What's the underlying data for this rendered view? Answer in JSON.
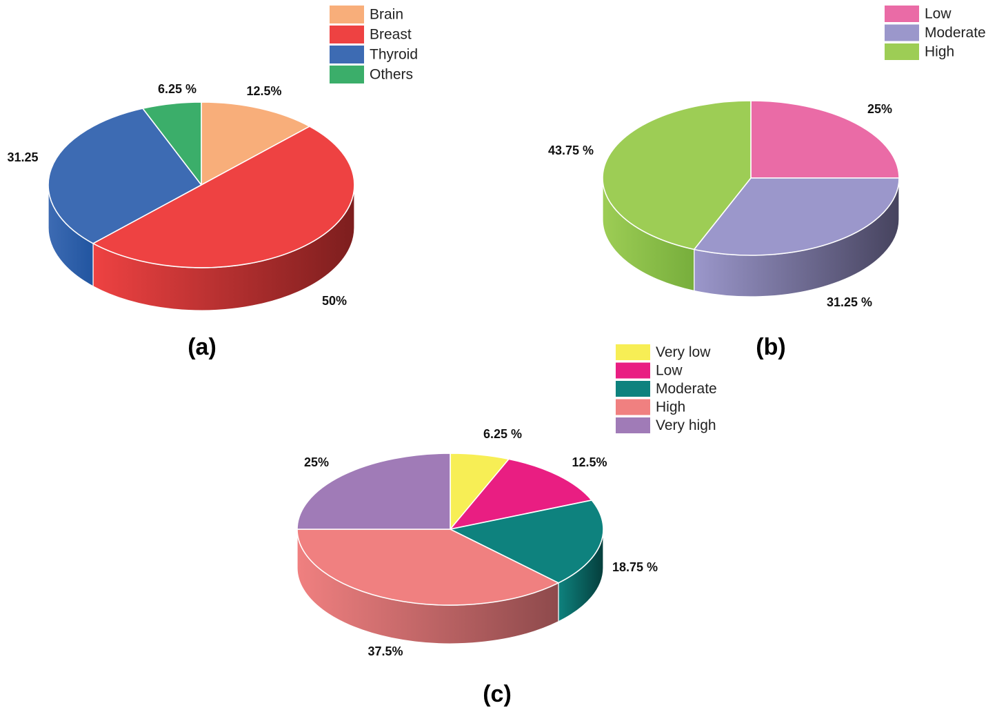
{
  "chart_data": [
    {
      "type": "pie",
      "panel_label": "(a)",
      "legend_position": "top-right",
      "categories": [
        "Brain",
        "Breast",
        "Thyroid",
        "Others"
      ],
      "values": [
        12.5,
        50,
        31.25,
        6.25
      ],
      "value_labels": [
        "12.5%",
        "50%",
        "31.25",
        "6.25 %"
      ],
      "colors": [
        "#F8AE7A",
        "#EE4242",
        "#3D6BB3",
        "#3BAE6A"
      ],
      "side_colors": [
        "#C77F4E",
        "#7D1E1E",
        "#2155A0",
        "#247A47"
      ]
    },
    {
      "type": "pie",
      "panel_label": "(b)",
      "legend_position": "top-right",
      "categories": [
        "Low",
        "Moderate",
        "High"
      ],
      "values": [
        25,
        31.25,
        43.75
      ],
      "value_labels": [
        "25%",
        "31.25 %",
        "43.75 %"
      ],
      "colors": [
        "#EA6BA6",
        "#9B97CB",
        "#9DCD55"
      ],
      "side_colors": [
        "#9E3F6C",
        "#46435E",
        "#77AE3C"
      ]
    },
    {
      "type": "pie",
      "panel_label": "(c)",
      "legend_position": "top-right",
      "categories": [
        "Very low",
        "Low",
        "Moderate",
        "High",
        "Very high"
      ],
      "values": [
        6.25,
        12.5,
        18.75,
        37.5,
        25
      ],
      "value_labels": [
        "6.25 %",
        "12.5%",
        "18.75 %",
        "37.5%",
        "25%"
      ],
      "colors": [
        "#F7EE55",
        "#E91E82",
        "#0E827E",
        "#F08080",
        "#A07BB7"
      ],
      "side_colors": [
        "#B7AE25",
        "#9C1256",
        "#053E3C",
        "#8E4A4C",
        "#6E4F82"
      ]
    }
  ]
}
